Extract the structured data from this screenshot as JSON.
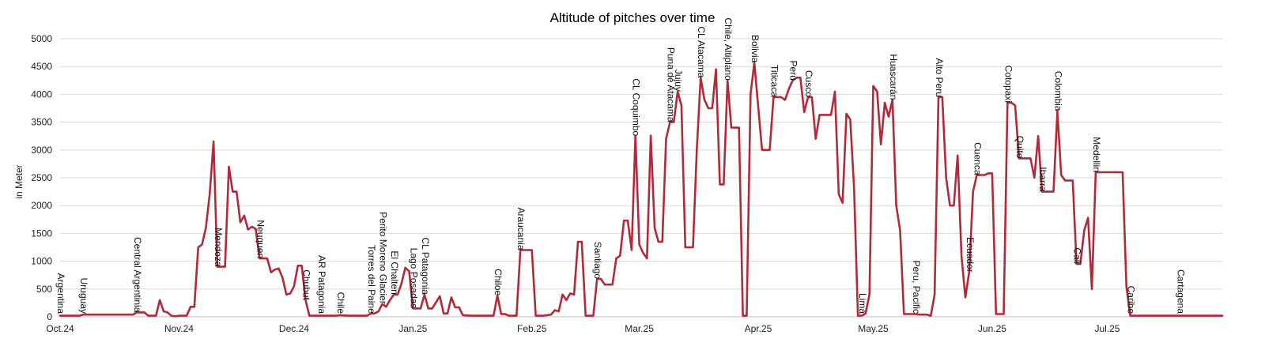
{
  "chart_data": {
    "type": "line",
    "title": "Altitude of pitches over time",
    "ylabel": "in Meter",
    "ylim": [
      0,
      5000
    ],
    "yticks": [
      "0",
      "500",
      "1000",
      "1500",
      "2000",
      "2500",
      "3000",
      "3500",
      "4000",
      "4500",
      "5000"
    ],
    "xlim": [
      "2024-10-01",
      "2025-07-31"
    ],
    "xticks": [
      {
        "label": "Oct.24",
        "date": "2024-10-01"
      },
      {
        "label": "Nov.24",
        "date": "2024-11-01"
      },
      {
        "label": "Dec.24",
        "date": "2024-12-01"
      },
      {
        "label": "Jan.25",
        "date": "2025-01-01"
      },
      {
        "label": "Feb.25",
        "date": "2025-02-01"
      },
      {
        "label": "Mar.25",
        "date": "2025-03-01"
      },
      {
        "label": "Apr.25",
        "date": "2025-04-01"
      },
      {
        "label": "May.25",
        "date": "2025-05-01"
      },
      {
        "label": "Jun.25",
        "date": "2025-06-01"
      },
      {
        "label": "Jul.25",
        "date": "2025-07-01"
      }
    ],
    "grid": true,
    "line_color": "#b22a3a",
    "series": [
      {
        "points": [
          [
            "2024-10-01",
            20
          ],
          [
            "2024-10-06",
            20
          ],
          [
            "2024-10-07",
            40
          ],
          [
            "2024-10-13",
            40
          ],
          [
            "2024-10-14",
            40
          ],
          [
            "2024-10-20",
            40
          ],
          [
            "2024-10-21",
            80
          ],
          [
            "2024-10-23",
            80
          ],
          [
            "2024-10-24",
            20
          ],
          [
            "2024-10-26",
            20
          ],
          [
            "2024-10-27",
            300
          ],
          [
            "2024-10-28",
            100
          ],
          [
            "2024-10-29",
            80
          ],
          [
            "2024-10-30",
            20
          ],
          [
            "2024-10-31",
            10
          ],
          [
            "2024-11-01",
            20
          ],
          [
            "2024-11-03",
            20
          ],
          [
            "2024-11-04",
            180
          ],
          [
            "2024-11-05",
            180
          ],
          [
            "2024-11-06",
            1250
          ],
          [
            "2024-11-07",
            1300
          ],
          [
            "2024-11-08",
            1600
          ],
          [
            "2024-11-09",
            2200
          ],
          [
            "2024-11-10",
            3150
          ],
          [
            "2024-11-11",
            900
          ],
          [
            "2024-11-13",
            900
          ],
          [
            "2024-11-14",
            2700
          ],
          [
            "2024-11-15",
            2250
          ],
          [
            "2024-11-16",
            2250
          ],
          [
            "2024-11-17",
            1700
          ],
          [
            "2024-11-18",
            1820
          ],
          [
            "2024-11-19",
            1570
          ],
          [
            "2024-11-20",
            1620
          ],
          [
            "2024-11-21",
            1580
          ],
          [
            "2024-11-22",
            1050
          ],
          [
            "2024-11-24",
            1050
          ],
          [
            "2024-11-25",
            800
          ],
          [
            "2024-11-26",
            850
          ],
          [
            "2024-11-27",
            870
          ],
          [
            "2024-11-28",
            700
          ],
          [
            "2024-11-29",
            400
          ],
          [
            "2024-11-30",
            420
          ],
          [
            "2024-12-01",
            550
          ],
          [
            "2024-12-02",
            920
          ],
          [
            "2024-12-03",
            920
          ],
          [
            "2024-12-04",
            300
          ],
          [
            "2024-12-05",
            20
          ],
          [
            "2024-12-08",
            20
          ],
          [
            "2024-12-09",
            20
          ],
          [
            "2024-12-10",
            20
          ],
          [
            "2024-12-12",
            20
          ],
          [
            "2024-12-13",
            30
          ],
          [
            "2024-12-15",
            20
          ],
          [
            "2024-12-20",
            20
          ],
          [
            "2024-12-21",
            60
          ],
          [
            "2024-12-22",
            60
          ],
          [
            "2024-12-23",
            100
          ],
          [
            "2024-12-24",
            230
          ],
          [
            "2024-12-25",
            180
          ],
          [
            "2024-12-26",
            300
          ],
          [
            "2024-12-27",
            400
          ],
          [
            "2024-12-28",
            400
          ],
          [
            "2024-12-29",
            600
          ],
          [
            "2024-12-30",
            880
          ],
          [
            "2024-12-31",
            820
          ],
          [
            "2025-01-01",
            150
          ],
          [
            "2025-01-03",
            150
          ],
          [
            "2025-01-04",
            400
          ],
          [
            "2025-01-05",
            150
          ],
          [
            "2025-01-06",
            150
          ],
          [
            "2025-01-08",
            370
          ],
          [
            "2025-01-09",
            60
          ],
          [
            "2025-01-10",
            60
          ],
          [
            "2025-01-11",
            350
          ],
          [
            "2025-01-12",
            170
          ],
          [
            "2025-01-13",
            170
          ],
          [
            "2025-01-14",
            30
          ],
          [
            "2025-01-16",
            20
          ],
          [
            "2025-01-22",
            20
          ],
          [
            "2025-01-23",
            380
          ],
          [
            "2025-01-24",
            50
          ],
          [
            "2025-01-25",
            50
          ],
          [
            "2025-01-26",
            20
          ],
          [
            "2025-01-28",
            20
          ],
          [
            "2025-01-29",
            1200
          ],
          [
            "2025-02-01",
            1200
          ],
          [
            "2025-02-02",
            20
          ],
          [
            "2025-02-04",
            20
          ],
          [
            "2025-02-06",
            40
          ],
          [
            "2025-02-07",
            120
          ],
          [
            "2025-02-08",
            100
          ],
          [
            "2025-02-09",
            400
          ],
          [
            "2025-02-10",
            300
          ],
          [
            "2025-02-11",
            420
          ],
          [
            "2025-02-12",
            400
          ],
          [
            "2025-02-13",
            1350
          ],
          [
            "2025-02-14",
            1350
          ],
          [
            "2025-02-15",
            20
          ],
          [
            "2025-02-17",
            20
          ],
          [
            "2025-02-18",
            680
          ],
          [
            "2025-02-19",
            680
          ],
          [
            "2025-02-20",
            580
          ],
          [
            "2025-02-22",
            580
          ],
          [
            "2025-02-23",
            1050
          ],
          [
            "2025-02-24",
            1100
          ],
          [
            "2025-02-25",
            1730
          ],
          [
            "2025-02-26",
            1730
          ],
          [
            "2025-02-27",
            1200
          ],
          [
            "2025-02-28",
            3250
          ],
          [
            "2025-03-01",
            1300
          ],
          [
            "2025-03-02",
            1150
          ],
          [
            "2025-03-03",
            1050
          ],
          [
            "2025-03-04",
            3260
          ],
          [
            "2025-03-05",
            1600
          ],
          [
            "2025-03-06",
            1350
          ],
          [
            "2025-03-07",
            1350
          ],
          [
            "2025-03-08",
            3200
          ],
          [
            "2025-03-09",
            3500
          ],
          [
            "2025-03-10",
            3500
          ],
          [
            "2025-03-11",
            4050
          ],
          [
            "2025-03-12",
            3800
          ],
          [
            "2025-03-13",
            1250
          ],
          [
            "2025-03-15",
            1250
          ],
          [
            "2025-03-16",
            3000
          ],
          [
            "2025-03-17",
            4300
          ],
          [
            "2025-03-18",
            3900
          ],
          [
            "2025-03-19",
            3750
          ],
          [
            "2025-03-20",
            3750
          ],
          [
            "2025-03-21",
            4450
          ],
          [
            "2025-03-22",
            2380
          ],
          [
            "2025-03-23",
            2380
          ],
          [
            "2025-03-24",
            4250
          ],
          [
            "2025-03-25",
            3400
          ],
          [
            "2025-03-27",
            3400
          ],
          [
            "2025-03-28",
            20
          ],
          [
            "2025-03-29",
            20
          ],
          [
            "2025-03-30",
            4000
          ],
          [
            "2025-03-31",
            4570
          ],
          [
            "2025-04-02",
            3000
          ],
          [
            "2025-04-04",
            3000
          ],
          [
            "2025-04-05",
            3950
          ],
          [
            "2025-04-07",
            3950
          ],
          [
            "2025-04-08",
            3900
          ],
          [
            "2025-04-09",
            4100
          ],
          [
            "2025-04-10",
            4250
          ],
          [
            "2025-04-11",
            4300
          ],
          [
            "2025-04-12",
            4300
          ],
          [
            "2025-04-13",
            3680
          ],
          [
            "2025-04-14",
            3950
          ],
          [
            "2025-04-15",
            3950
          ],
          [
            "2025-04-16",
            3200
          ],
          [
            "2025-04-17",
            3630
          ],
          [
            "2025-04-20",
            3630
          ],
          [
            "2025-04-21",
            4050
          ],
          [
            "2025-04-22",
            2200
          ],
          [
            "2025-04-23",
            2050
          ],
          [
            "2025-04-24",
            3650
          ],
          [
            "2025-04-25",
            3550
          ],
          [
            "2025-04-26",
            2300
          ],
          [
            "2025-04-27",
            20
          ],
          [
            "2025-04-28",
            20
          ],
          [
            "2025-04-29",
            60
          ],
          [
            "2025-04-30",
            400
          ],
          [
            "2025-05-01",
            4150
          ],
          [
            "2025-05-02",
            4050
          ],
          [
            "2025-05-03",
            3100
          ],
          [
            "2025-05-04",
            3850
          ],
          [
            "2025-05-05",
            3600
          ],
          [
            "2025-05-06",
            3900
          ],
          [
            "2025-05-07",
            2000
          ],
          [
            "2025-05-08",
            1550
          ],
          [
            "2025-05-09",
            50
          ],
          [
            "2025-05-12",
            50
          ],
          [
            "2025-05-13",
            40
          ],
          [
            "2025-05-15",
            40
          ],
          [
            "2025-05-16",
            20
          ],
          [
            "2025-05-17",
            400
          ],
          [
            "2025-05-18",
            3950
          ],
          [
            "2025-05-19",
            3950
          ],
          [
            "2025-05-20",
            2500
          ],
          [
            "2025-05-21",
            2000
          ],
          [
            "2025-05-22",
            2000
          ],
          [
            "2025-05-23",
            2900
          ],
          [
            "2025-05-24",
            1100
          ],
          [
            "2025-05-25",
            350
          ],
          [
            "2025-05-26",
            800
          ],
          [
            "2025-05-27",
            2250
          ],
          [
            "2025-05-28",
            2550
          ],
          [
            "2025-05-30",
            2550
          ],
          [
            "2025-05-31",
            2580
          ],
          [
            "2025-06-01",
            2580
          ],
          [
            "2025-06-02",
            50
          ],
          [
            "2025-06-04",
            50
          ],
          [
            "2025-06-05",
            3850
          ],
          [
            "2025-06-06",
            3850
          ],
          [
            "2025-06-07",
            3800
          ],
          [
            "2025-06-08",
            2850
          ],
          [
            "2025-06-11",
            2850
          ],
          [
            "2025-06-12",
            2500
          ],
          [
            "2025-06-13",
            3250
          ],
          [
            "2025-06-14",
            2250
          ],
          [
            "2025-06-15",
            2250
          ],
          [
            "2025-06-16",
            2250
          ],
          [
            "2025-06-17",
            2250
          ],
          [
            "2025-06-18",
            3700
          ],
          [
            "2025-06-19",
            2550
          ],
          [
            "2025-06-20",
            2450
          ],
          [
            "2025-06-22",
            2450
          ],
          [
            "2025-06-23",
            950
          ],
          [
            "2025-06-24",
            950
          ],
          [
            "2025-06-25",
            1550
          ],
          [
            "2025-06-26",
            1780
          ],
          [
            "2025-06-27",
            500
          ],
          [
            "2025-06-28",
            2600
          ],
          [
            "2025-07-05",
            2600
          ],
          [
            "2025-07-06",
            550
          ],
          [
            "2025-07-07",
            20
          ],
          [
            "2025-07-31",
            20
          ]
        ]
      }
    ],
    "annotations": [
      {
        "text": "Argentina",
        "date": "2024-10-01",
        "y": 10
      },
      {
        "text": "Uruguay",
        "date": "2024-10-07",
        "y": 40
      },
      {
        "text": "Central Argentinia",
        "date": "2024-10-21",
        "y": 80
      },
      {
        "text": "Mendoza",
        "date": "2024-11-11",
        "y": 900
      },
      {
        "text": "Neuquen",
        "date": "2024-11-22",
        "y": 1050
      },
      {
        "text": "Chubut",
        "date": "2024-12-04",
        "y": 300
      },
      {
        "text": "AR Patagonia",
        "date": "2024-12-08",
        "y": 20
      },
      {
        "text": "Chile",
        "date": "2024-12-13",
        "y": 30
      },
      {
        "text": "Torres del Paine",
        "date": "2024-12-21",
        "y": 60
      },
      {
        "text": "Perito Moreno Glacier",
        "date": "2024-12-24",
        "y": 230
      },
      {
        "text": "El Chalten",
        "date": "2024-12-27",
        "y": 400
      },
      {
        "text": "Lago Posadas",
        "date": "2025-01-01",
        "y": 150
      },
      {
        "text": "CL Patagonia",
        "date": "2025-01-04",
        "y": 400
      },
      {
        "text": "Chiloe",
        "date": "2025-01-23",
        "y": 380
      },
      {
        "text": "Araucania",
        "date": "2025-01-29",
        "y": 1200
      },
      {
        "text": "Santiago",
        "date": "2025-02-18",
        "y": 680
      },
      {
        "text": "CL Coquimbo",
        "date": "2025-02-28",
        "y": 3250
      },
      {
        "text": "Puna de Atacama",
        "date": "2025-03-09",
        "y": 3500
      },
      {
        "text": "Jujuy",
        "date": "2025-03-11",
        "y": 4050
      },
      {
        "text": "CL Atacama",
        "date": "2025-03-17",
        "y": 4300
      },
      {
        "text": "Chile, Altiplano",
        "date": "2025-03-24",
        "y": 4250
      },
      {
        "text": "Bolivia",
        "date": "2025-03-31",
        "y": 4570
      },
      {
        "text": "Titicaca",
        "date": "2025-04-05",
        "y": 3950
      },
      {
        "text": "Peru",
        "date": "2025-04-10",
        "y": 4250
      },
      {
        "text": "Cusco",
        "date": "2025-04-14",
        "y": 3950
      },
      {
        "text": "Lima",
        "date": "2025-04-28",
        "y": 20
      },
      {
        "text": "Huascarán",
        "date": "2025-05-06",
        "y": 3900
      },
      {
        "text": "Peru, Pacific",
        "date": "2025-05-12",
        "y": 50
      },
      {
        "text": "Alto Peru",
        "date": "2025-05-18",
        "y": 3950
      },
      {
        "text": "Ecuador",
        "date": "2025-05-26",
        "y": 800
      },
      {
        "text": "Cuenca",
        "date": "2025-05-28",
        "y": 2550
      },
      {
        "text": "Cotopaxi",
        "date": "2025-06-05",
        "y": 3850
      },
      {
        "text": "Quito",
        "date": "2025-06-08",
        "y": 2850
      },
      {
        "text": "Ibarra",
        "date": "2025-06-14",
        "y": 2250
      },
      {
        "text": "Colombia",
        "date": "2025-06-18",
        "y": 3700
      },
      {
        "text": "Cali",
        "date": "2025-06-23",
        "y": 950
      },
      {
        "text": "Medellin",
        "date": "2025-06-28",
        "y": 2600
      },
      {
        "text": "Caribe",
        "date": "2025-07-07",
        "y": 20
      },
      {
        "text": "Cartagena",
        "date": "2025-07-20",
        "y": 20
      }
    ]
  }
}
